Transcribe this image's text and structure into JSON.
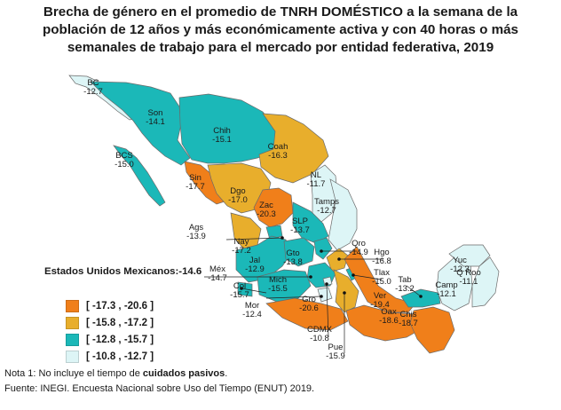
{
  "title": {
    "line1": "Brecha de género en el promedio de TNRH DOMÉSTICO a la semana de la",
    "line2": "población de 12 años y más económicamente activa y con 40 horas o más",
    "line3": "semanales de trabajo para el mercado por entidad federativa, 2019"
  },
  "national": {
    "label": "Estados Unidos Mexicanos:",
    "value": "-14.6"
  },
  "legend": [
    {
      "label": "[ -17.3 , -20.6 ]",
      "color": "#F07F1A"
    },
    {
      "label": "[ -15.8 , -17.2 ]",
      "color": "#E8AE2C"
    },
    {
      "label": "[ -12.8 , -15.7 ]",
      "color": "#1BB8B8"
    },
    {
      "label": "[ -10.8 , -12.7 ]",
      "color": "#DDF5F6"
    }
  ],
  "states": [
    {
      "abbr": "BC",
      "value": "-12.7",
      "class": 3
    },
    {
      "abbr": "Son",
      "value": "-14.1",
      "class": 2
    },
    {
      "abbr": "BCS",
      "value": "-15.0",
      "class": 2
    },
    {
      "abbr": "Chih",
      "value": "-15.1",
      "class": 2
    },
    {
      "abbr": "Coah",
      "value": "-16.3",
      "class": 1
    },
    {
      "abbr": "Sin",
      "value": "-17.7",
      "class": 0
    },
    {
      "abbr": "Dgo",
      "value": "-17.0",
      "class": 1
    },
    {
      "abbr": "NL",
      "value": "-11.7",
      "class": 3
    },
    {
      "abbr": "Tamps",
      "value": "-12.7",
      "class": 3
    },
    {
      "abbr": "Zac",
      "value": "-20.3",
      "class": 0
    },
    {
      "abbr": "SLP",
      "value": "-13.7",
      "class": 2
    },
    {
      "abbr": "Ags",
      "value": "-13.9",
      "class": 2
    },
    {
      "abbr": "Nay",
      "value": "-17.2",
      "class": 1
    },
    {
      "abbr": "Jal",
      "value": "-12.9",
      "class": 2
    },
    {
      "abbr": "Gto",
      "value": "-13.8",
      "class": 2
    },
    {
      "abbr": "Qro",
      "value": "-14.9",
      "class": 2
    },
    {
      "abbr": "Hgo",
      "value": "-16.8",
      "class": 1
    },
    {
      "abbr": "Méx",
      "value": "-14.7",
      "class": 2
    },
    {
      "abbr": "Tlax",
      "value": "-15.0",
      "class": 2
    },
    {
      "abbr": "Col",
      "value": "-15.7",
      "class": 2
    },
    {
      "abbr": "Mich",
      "value": "-15.5",
      "class": 2
    },
    {
      "abbr": "Mor",
      "value": "-12.4",
      "class": 3
    },
    {
      "abbr": "Gro",
      "value": "-20.6",
      "class": 0
    },
    {
      "abbr": "CDMX",
      "value": "-10.8",
      "class": 3
    },
    {
      "abbr": "Pue",
      "value": "-15.9",
      "class": 1
    },
    {
      "abbr": "Ver",
      "value": "-19.4",
      "class": 0
    },
    {
      "abbr": "Oax",
      "value": "-18.6",
      "class": 0
    },
    {
      "abbr": "Tab",
      "value": "-13.2",
      "class": 2
    },
    {
      "abbr": "Chis",
      "value": "-18.7",
      "class": 0
    },
    {
      "abbr": "Camp",
      "value": "-12.1",
      "class": 3
    },
    {
      "abbr": "Yuc",
      "value": "-12.3",
      "class": 3
    },
    {
      "abbr": "Q Roo",
      "value": "-11.1",
      "class": 3
    }
  ],
  "notes": {
    "note_prefix": "Nota 1: No incluye el tiempo de ",
    "note_bold": "cuidados pasivos",
    "note_suffix": ".",
    "source": "Fuente: INEGI. Encuesta Nacional sobre Uso del Tiempo (ENUT) 2019."
  }
}
